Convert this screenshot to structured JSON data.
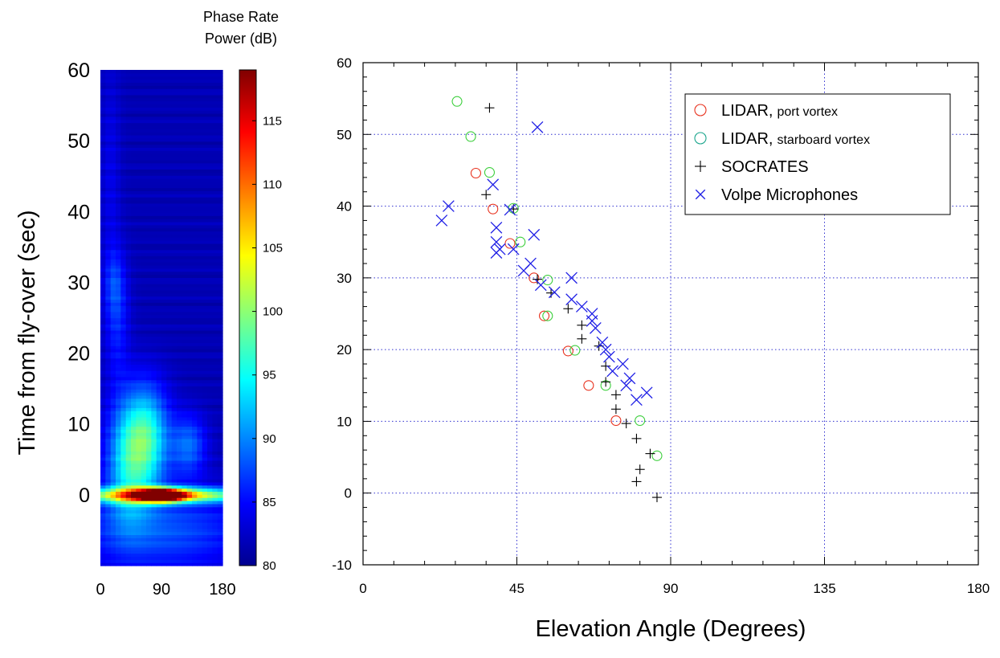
{
  "labels": {
    "colorbar_title_1": "Phase Rate",
    "colorbar_title_2": "Power (dB)",
    "y_axis_left": "Time from fly-over (sec)",
    "x_axis_right": "Elevation Angle (Degrees)"
  },
  "chart_data": [
    {
      "type": "heatmap",
      "title": "",
      "xlabel": "",
      "ylabel": "Time from fly-over (sec)",
      "x_ticks": [
        0,
        90,
        180
      ],
      "y_ticks": [
        0,
        10,
        20,
        30,
        40,
        50,
        60
      ],
      "xlim": [
        0,
        180
      ],
      "ylim": [
        -10,
        60
      ],
      "colorbar": {
        "title": "Phase Rate Power (dB)",
        "range": [
          80,
          119
        ],
        "ticks": [
          80,
          85,
          90,
          95,
          100,
          105,
          110,
          115
        ],
        "colormap": "jet"
      },
      "background_db": 82,
      "blobs": [
        {
          "x": 90,
          "t": 0,
          "sx": 22,
          "st": 0.6,
          "db": 37
        },
        {
          "x": 90,
          "t": 0,
          "sx": 90,
          "st": 0.7,
          "db": 24
        },
        {
          "x": 70,
          "t": 8,
          "sx": 22,
          "st": 5,
          "db": 13
        },
        {
          "x": 40,
          "t": 5,
          "sx": 22,
          "st": 6,
          "db": 11
        },
        {
          "x": 130,
          "t": 7,
          "sx": 18,
          "st": 3,
          "db": 7
        },
        {
          "x": 90,
          "t": -5,
          "sx": 90,
          "st": 4,
          "db": 6
        },
        {
          "x": 25,
          "t": 25,
          "sx": 12,
          "st": 6,
          "db": 4
        },
        {
          "x": 20,
          "t": 30,
          "sx": 10,
          "st": 3,
          "db": 3
        },
        {
          "x": 15,
          "t": 45,
          "sx": 10,
          "st": 12,
          "db": 2
        }
      ]
    },
    {
      "type": "scatter",
      "title": "",
      "xlabel": "Elevation Angle (Degrees)",
      "ylabel": "",
      "xlim": [
        0,
        180
      ],
      "ylim": [
        -10,
        60
      ],
      "x_ticks": [
        0,
        45,
        90,
        135,
        180
      ],
      "y_ticks": [
        -10,
        0,
        10,
        20,
        30,
        40,
        50,
        60
      ],
      "grid": "dotted blue at major ticks",
      "legend_position": "top-right",
      "series": [
        {
          "name": "LIDAR, port vortex",
          "name_main": "LIDAR,",
          "name_sub": "port vortex",
          "marker": "circle",
          "color": "#e8321e",
          "points": [
            [
              33,
              44.6
            ],
            [
              38,
              39.6
            ],
            [
              43,
              34.8
            ],
            [
              50,
              30
            ],
            [
              53,
              24.7
            ],
            [
              60,
              19.8
            ],
            [
              66,
              15
            ],
            [
              74,
              10.1
            ]
          ]
        },
        {
          "name": "LIDAR, starboard vortex",
          "name_main": "LIDAR,",
          "name_sub": "starboard vortex",
          "marker": "circle",
          "color": "#3ccf3c",
          "legend_color": "#1aa58c",
          "points": [
            [
              27.5,
              54.6
            ],
            [
              31.5,
              49.7
            ],
            [
              37,
              44.7
            ],
            [
              44,
              39.7
            ],
            [
              46,
              35
            ],
            [
              54,
              29.7
            ],
            [
              54,
              24.7
            ],
            [
              62,
              19.9
            ],
            [
              71,
              15
            ],
            [
              81,
              10.1
            ],
            [
              86,
              5.2
            ]
          ]
        },
        {
          "name": "SOCRATES",
          "name_main": "SOCRATES",
          "marker": "plus",
          "color": "#000000",
          "points": [
            [
              37,
              53.7
            ],
            [
              36,
              41.6
            ],
            [
              44,
              39.6
            ],
            [
              51,
              29.8
            ],
            [
              55,
              27.9
            ],
            [
              60,
              25.7
            ],
            [
              64,
              23.4
            ],
            [
              64,
              21.5
            ],
            [
              69,
              20.5
            ],
            [
              71,
              17.7
            ],
            [
              71,
              15.5
            ],
            [
              74,
              13.7
            ],
            [
              74,
              11.7
            ],
            [
              77,
              9.7
            ],
            [
              80,
              7.6
            ],
            [
              84,
              5.5
            ],
            [
              81,
              3.3
            ],
            [
              80,
              1.6
            ],
            [
              86,
              -0.6
            ]
          ]
        },
        {
          "name": "Volpe Microphones",
          "name_main": "Volpe Microphones",
          "marker": "x",
          "color": "#2020e6",
          "points": [
            [
              51,
              51
            ],
            [
              23,
              38
            ],
            [
              25,
              40
            ],
            [
              38,
              43
            ],
            [
              43,
              39.5
            ],
            [
              39,
              37
            ],
            [
              39,
              35
            ],
            [
              39,
              33.5
            ],
            [
              40,
              34
            ],
            [
              44,
              34
            ],
            [
              50,
              36
            ],
            [
              49,
              32
            ],
            [
              47,
              31
            ],
            [
              52,
              29
            ],
            [
              61,
              30
            ],
            [
              56,
              28
            ],
            [
              61,
              27
            ],
            [
              64,
              26
            ],
            [
              67,
              24
            ],
            [
              67,
              25
            ],
            [
              68,
              23
            ],
            [
              70,
              21
            ],
            [
              71,
              20
            ],
            [
              72,
              19
            ],
            [
              73,
              17
            ],
            [
              76,
              18
            ],
            [
              78,
              16
            ],
            [
              77,
              15
            ],
            [
              80,
              13
            ],
            [
              83,
              14
            ]
          ]
        }
      ]
    }
  ]
}
